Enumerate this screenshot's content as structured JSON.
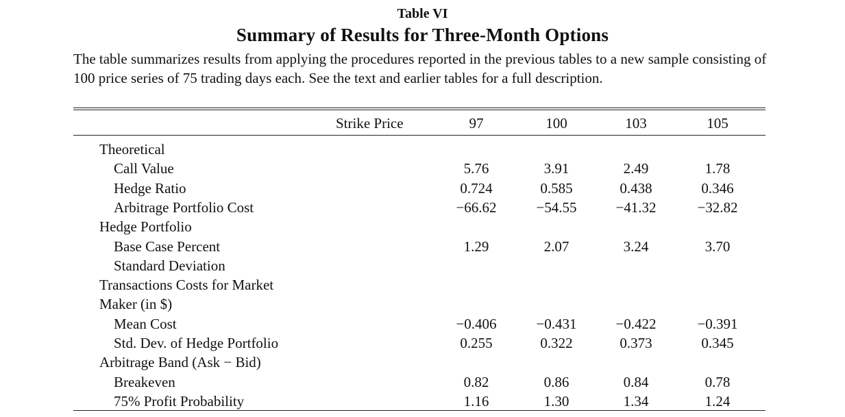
{
  "table_label": "Table VI",
  "title": "Summary of Results for Three-Month Options",
  "caption": "The table summarizes results from applying the procedures reported in the previous tables to a new sample consisting of 100 price series of 75 trading days each. See the text and earlier tables for a full description.",
  "header": {
    "label": "Strike Price",
    "strikes": [
      "97",
      "100",
      "103",
      "105"
    ]
  },
  "rows": [
    {
      "label": "Theoretical",
      "indent": 1,
      "values": []
    },
    {
      "label": "Call Value",
      "indent": 2,
      "values": [
        "5.76",
        "3.91",
        "2.49",
        "1.78"
      ]
    },
    {
      "label": "Hedge Ratio",
      "indent": 2,
      "values": [
        "0.724",
        "0.585",
        "0.438",
        "0.346"
      ]
    },
    {
      "label": "Arbitrage Portfolio Cost",
      "indent": 2,
      "values": [
        "−66.62",
        "−54.55",
        "−41.32",
        "−32.82"
      ]
    },
    {
      "label": "Hedge Portfolio",
      "indent": 1,
      "values": []
    },
    {
      "label": "Base Case Percent",
      "indent": 2,
      "values": [
        "1.29",
        "2.07",
        "3.24",
        "3.70"
      ]
    },
    {
      "label": "Standard Deviation",
      "indent": 2,
      "values": []
    },
    {
      "label": "Transactions Costs for Market",
      "indent": 1,
      "values": []
    },
    {
      "label": "Maker (in $)",
      "indent": 1,
      "values": []
    },
    {
      "label": "Mean Cost",
      "indent": 2,
      "values": [
        "−0.406",
        "−0.431",
        "−0.422",
        "−0.391"
      ]
    },
    {
      "label": "Std. Dev. of Hedge Portfolio",
      "indent": 2,
      "values": [
        "0.255",
        "0.322",
        "0.373",
        "0.345"
      ]
    },
    {
      "label": "Arbitrage Band (Ask − Bid)",
      "indent": 1,
      "values": []
    },
    {
      "label": "Breakeven",
      "indent": 2,
      "values": [
        "0.82",
        "0.86",
        "0.84",
        "0.78"
      ]
    },
    {
      "label": "75% Profit Probability",
      "indent": 2,
      "values": [
        "1.16",
        "1.30",
        "1.34",
        "1.24"
      ]
    }
  ]
}
